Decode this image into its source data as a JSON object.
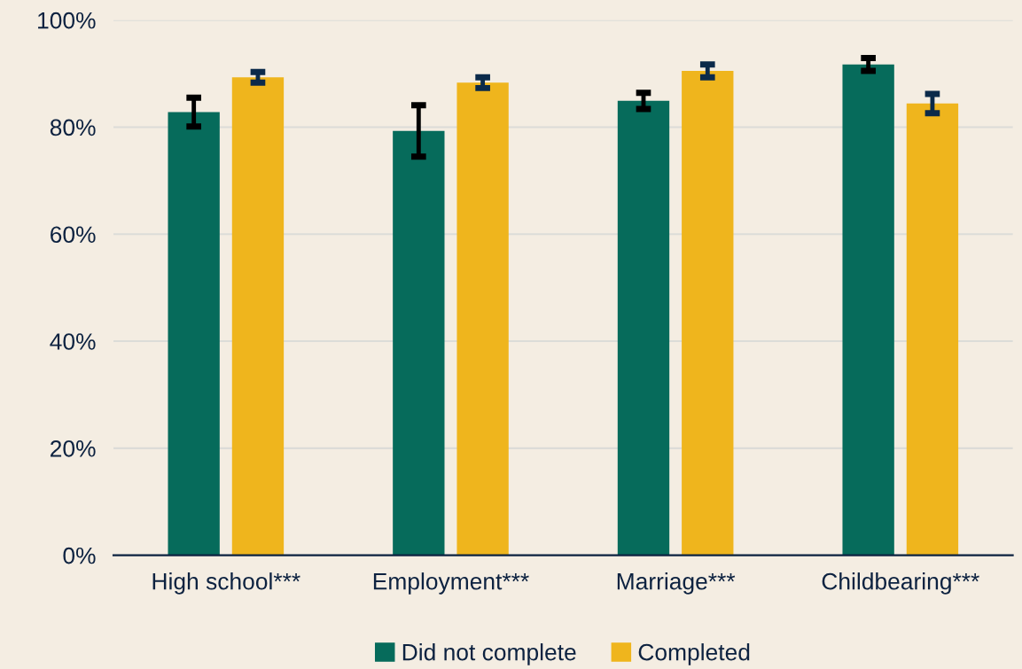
{
  "chart_data": {
    "type": "bar",
    "categories": [
      "High school***",
      "Employment***",
      "Marriage***",
      "Childbearing***"
    ],
    "series": [
      {
        "name": "Did not complete",
        "color": "#066b5b",
        "values": [
          82.8,
          79.3,
          84.9,
          91.7
        ],
        "errors": [
          2.7,
          4.8,
          1.5,
          1.2
        ]
      },
      {
        "name": "Completed",
        "color": "#efb51d",
        "values": [
          89.3,
          88.3,
          90.5,
          84.4
        ],
        "errors": [
          1.0,
          1.0,
          1.2,
          1.8
        ]
      }
    ],
    "ylim": [
      0,
      100
    ],
    "yticks": [
      {
        "value": 0,
        "label": "0%"
      },
      {
        "value": 20,
        "label": "20%"
      },
      {
        "value": 40,
        "label": "40%"
      },
      {
        "value": 60,
        "label": "60%"
      },
      {
        "value": 80,
        "label": "80%"
      },
      {
        "value": 100,
        "label": "100%"
      }
    ],
    "grid": "y",
    "legend": "bottom"
  }
}
